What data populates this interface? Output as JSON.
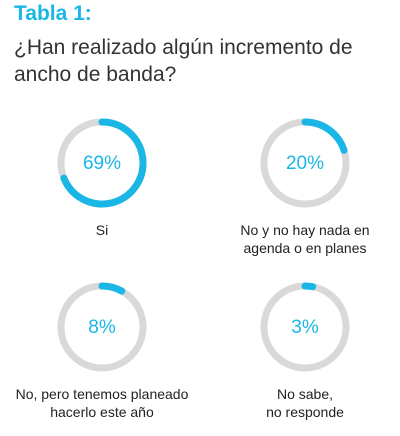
{
  "chart_data": {
    "type": "donut",
    "title": "Tabla 1:",
    "subtitle": "¿Han realizado algún incremento de ancho de banda?",
    "categories": [
      "Si",
      "No y no hay nada en\nagenda o en planes",
      "No, pero tenemos planeado\nhacerlo este año",
      "No sabe,\nno responde"
    ],
    "values": [
      69,
      20,
      8,
      3
    ],
    "value_labels": [
      "69%",
      "20%",
      "8%",
      "3%"
    ],
    "ylim": [
      0,
      100
    ],
    "color": "#1ab7e6",
    "track_color": "#d9d9d9"
  }
}
